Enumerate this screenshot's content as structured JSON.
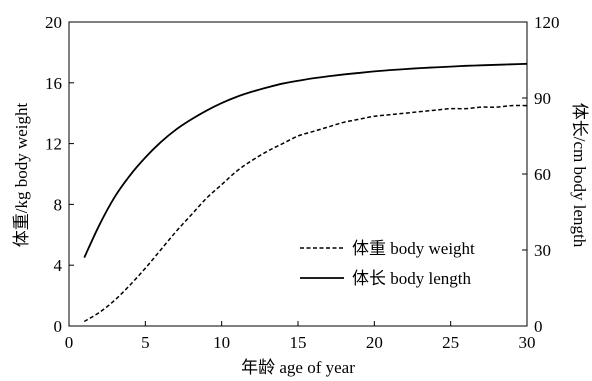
{
  "chart_data": {
    "type": "line",
    "title": "",
    "xlabel": "年龄 age of year",
    "ylabel_left": "体重/kg body weight",
    "ylabel_right": "体长/cm body length",
    "xlim": [
      0,
      30
    ],
    "ylim_left": [
      0,
      20
    ],
    "ylim_right": [
      0,
      120
    ],
    "xticks": [
      0,
      5,
      10,
      15,
      20,
      25,
      30
    ],
    "yticks_left": [
      0,
      4,
      8,
      12,
      16,
      20
    ],
    "yticks_right": [
      0,
      30,
      60,
      90,
      120
    ],
    "grid": false,
    "legend_position": "bottom-right",
    "series": [
      {
        "name": "体重 body weight",
        "axis": "left",
        "style": "dashed",
        "x": [
          1,
          2,
          3,
          4,
          5,
          6,
          7,
          8,
          9,
          10,
          11,
          12,
          13,
          14,
          15,
          16,
          17,
          18,
          19,
          20,
          21,
          22,
          23,
          24,
          25,
          26,
          27,
          28,
          29,
          30
        ],
        "y": [
          0.3,
          0.9,
          1.7,
          2.7,
          3.8,
          5.0,
          6.2,
          7.3,
          8.4,
          9.3,
          10.2,
          10.9,
          11.5,
          12.0,
          12.5,
          12.8,
          13.1,
          13.4,
          13.6,
          13.8,
          13.9,
          14.0,
          14.1,
          14.2,
          14.3,
          14.3,
          14.4,
          14.4,
          14.5,
          14.5
        ]
      },
      {
        "name": "体长 body length",
        "axis": "right",
        "style": "solid",
        "x": [
          1,
          2,
          3,
          4,
          5,
          6,
          7,
          8,
          9,
          10,
          11,
          12,
          13,
          14,
          15,
          16,
          17,
          18,
          19,
          20,
          21,
          22,
          23,
          24,
          25,
          26,
          27,
          28,
          29,
          30
        ],
        "y": [
          27,
          40,
          51,
          59.5,
          66.5,
          72.5,
          77.5,
          81.5,
          85,
          88,
          90.5,
          92.5,
          94.2,
          95.7,
          96.8,
          97.8,
          98.6,
          99.3,
          99.9,
          100.5,
          101,
          101.4,
          101.8,
          102.1,
          102.4,
          102.7,
          102.9,
          103.1,
          103.3,
          103.5
        ]
      }
    ]
  }
}
